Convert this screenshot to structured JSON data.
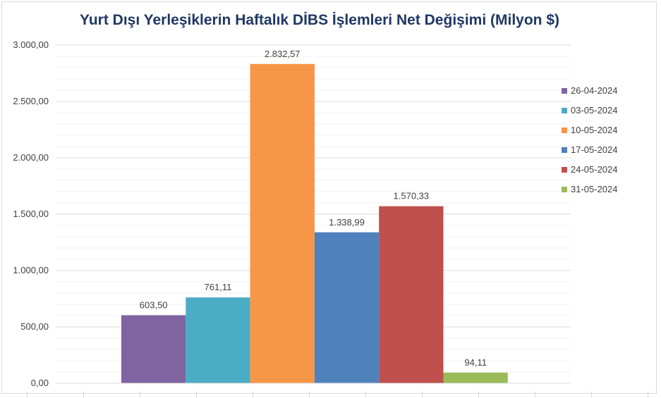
{
  "chart_data": {
    "type": "bar",
    "title": "Yurt Dışı Yerleşiklerin Haftalık DİBS İşlemleri Net Değişimi (Milyon $)",
    "xlabel": "",
    "ylabel": "",
    "ylim": [
      0,
      3000
    ],
    "yticks": [
      "0,00",
      "500,00",
      "1.000,00",
      "1.500,00",
      "2.000,00",
      "2.500,00",
      "3.000,00"
    ],
    "grid": true,
    "legend_position": "right",
    "series": [
      {
        "name": "26-04-2024",
        "value": 603.5,
        "label": "603,50",
        "color": "#8064a2"
      },
      {
        "name": "03-05-2024",
        "value": 761.11,
        "label": "761,11",
        "color": "#4bacc6"
      },
      {
        "name": "10-05-2024",
        "value": 2832.57,
        "label": "2.832,57",
        "color": "#f79646"
      },
      {
        "name": "17-05-2024",
        "value": 1338.99,
        "label": "1.338,99",
        "color": "#4f81bd"
      },
      {
        "name": "24-05-2024",
        "value": 1570.33,
        "label": "1.570,33",
        "color": "#c0504d"
      },
      {
        "name": "31-05-2024",
        "value": 94.11,
        "label": "94,11",
        "color": "#9bbb59"
      }
    ]
  }
}
